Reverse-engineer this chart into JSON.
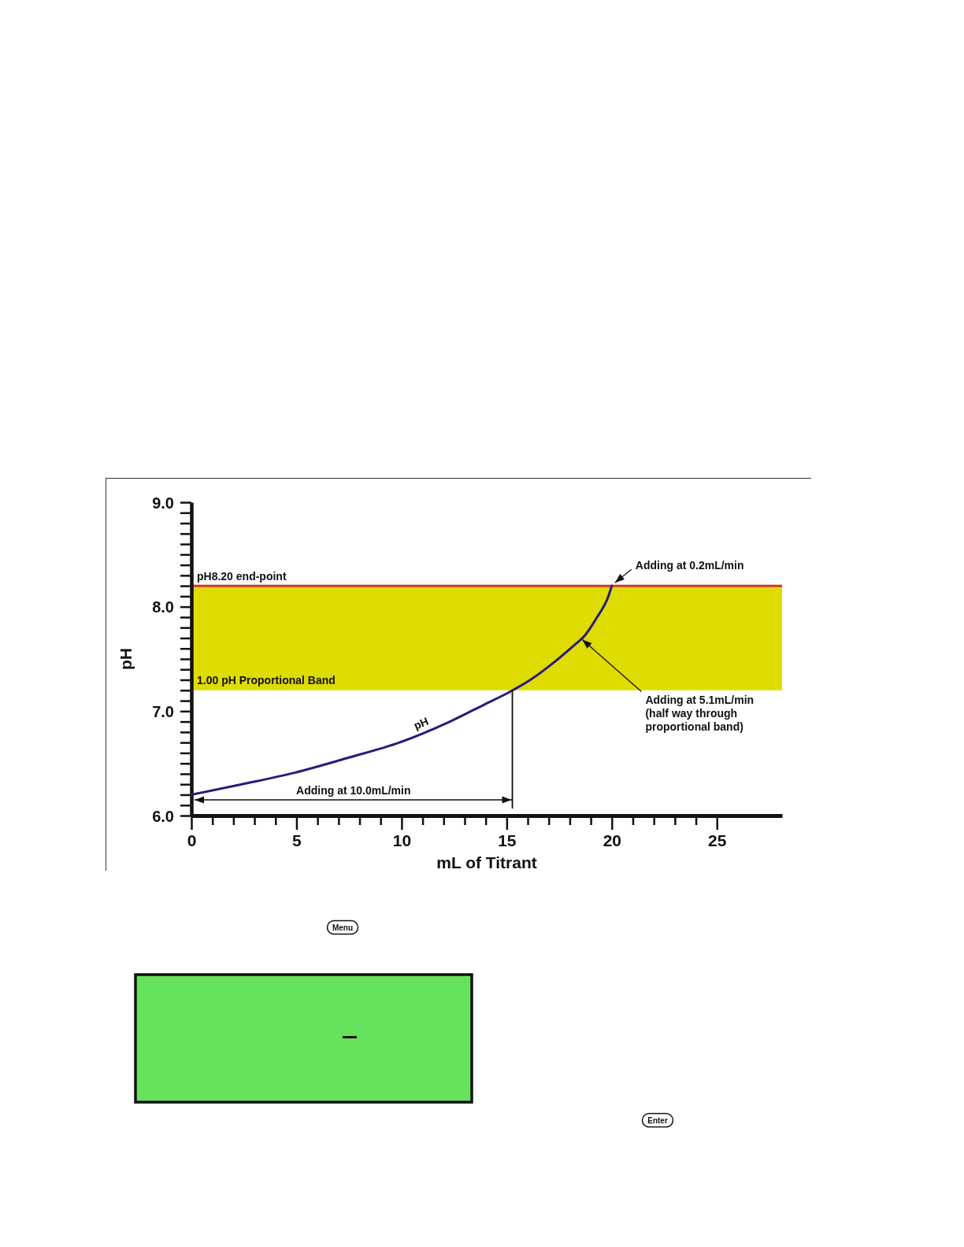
{
  "chart_data": [
    {
      "type": "line",
      "xlabel": "mL of Titrant",
      "ylabel": "pH",
      "xlim": [
        0,
        28.1
      ],
      "xticks": [
        0,
        {
          "value": 1,
          "label": null
        },
        {
          "value": 2,
          "label": null
        },
        {
          "value": 3,
          "label": null
        },
        {
          "value": 4,
          "label": null
        },
        5,
        {
          "value": 6,
          "label": null
        },
        {
          "value": 7,
          "label": null
        },
        {
          "value": 8,
          "label": null
        },
        {
          "value": 9,
          "label": null
        },
        10,
        {
          "value": 11,
          "label": null
        },
        {
          "value": 12,
          "label": null
        },
        {
          "value": 13,
          "label": null
        },
        {
          "value": 14,
          "label": null
        },
        15,
        {
          "value": 16,
          "label": null
        },
        {
          "value": 17,
          "label": null
        },
        {
          "value": 18,
          "label": null
        },
        {
          "value": 19,
          "label": null
        },
        20,
        {
          "value": 21,
          "label": null
        },
        {
          "value": 22,
          "label": null
        },
        {
          "value": 23,
          "label": null
        },
        {
          "value": 24,
          "label": null
        },
        25
      ],
      "ylim": [
        6,
        9
      ],
      "yticks": [
        {
          "value": 6,
          "label": "6.0"
        },
        {
          "value": 6.1,
          "label": null
        },
        {
          "value": 6.2,
          "label": null
        },
        {
          "value": 6.3,
          "label": null
        },
        {
          "value": 6.4,
          "label": null
        },
        {
          "value": 6.5,
          "label": null
        },
        {
          "value": 6.6,
          "label": null
        },
        {
          "value": 6.7,
          "label": null
        },
        {
          "value": 6.8,
          "label": null
        },
        {
          "value": 6.9,
          "label": null
        },
        {
          "value": 7,
          "label": "7.0"
        },
        {
          "value": 7.1,
          "label": null
        },
        {
          "value": 7.2,
          "label": null
        },
        {
          "value": 7.3,
          "label": null
        },
        {
          "value": 7.4,
          "label": null
        },
        {
          "value": 7.5,
          "label": null
        },
        {
          "value": 7.6,
          "label": null
        },
        {
          "value": 7.7,
          "label": null
        },
        {
          "value": 7.8,
          "label": null
        },
        {
          "value": 7.9,
          "label": null
        },
        {
          "value": 8,
          "label": "8.0"
        },
        {
          "value": 8.1,
          "label": null
        },
        {
          "value": 8.2,
          "label": null
        },
        {
          "value": 8.3,
          "label": null
        },
        {
          "value": 8.4,
          "label": null
        },
        {
          "value": 8.5,
          "label": null
        },
        {
          "value": 8.6,
          "label": null
        },
        {
          "value": 8.7,
          "label": null
        },
        {
          "value": 8.8,
          "label": null
        },
        {
          "value": 8.9,
          "label": null
        },
        {
          "value": 9,
          "label": "9.0"
        }
      ],
      "series": [
        {
          "name": "pH",
          "color": "#2b1a7c",
          "x": [
            0,
            2.4,
            4.9,
            7.4,
            9.9,
            12.3,
            14,
            15.1,
            16.2,
            17.2,
            18.2,
            18.7,
            19.3,
            19.8,
            20
          ],
          "values": [
            6.2,
            6.3,
            6.41,
            6.55,
            6.7,
            6.9,
            7.07,
            7.18,
            7.31,
            7.46,
            7.63,
            7.72,
            7.9,
            8.08,
            8.2
          ]
        }
      ],
      "ref_lines": [
        {
          "axis": "y",
          "value": 8.2,
          "label": "pH8.20 end-point",
          "color": "#dc3232"
        }
      ],
      "bands": [
        {
          "axis": "y",
          "from": 7.2,
          "to": 8.2,
          "label": "1.00 pH Proportional Band",
          "color": "#dedc00"
        }
      ],
      "annotations": [
        {
          "text": "Adding at 0.2mL/min",
          "x": 20,
          "y": 8.2
        },
        {
          "text": "Adding at 5.1mL/min\n(half way through\nproportional band)",
          "x": 18.6,
          "y": 7.7
        },
        "Adding at 10.0mL/min"
      ]
    },
    {
      "type": "other",
      "annotations": [
        "Menu",
        "Enter"
      ]
    }
  ]
}
